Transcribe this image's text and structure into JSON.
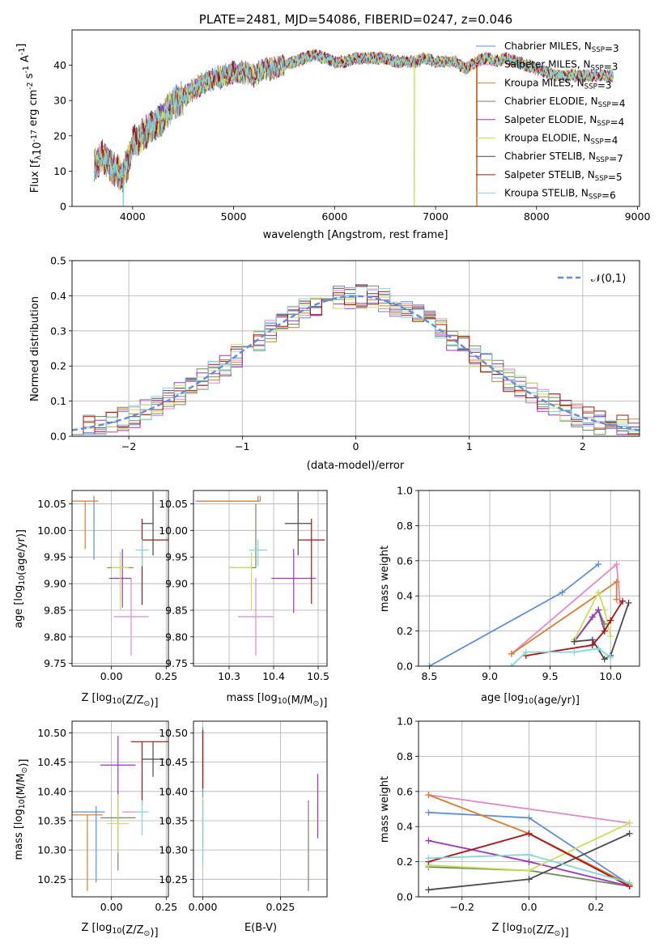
{
  "figure": {
    "title": "PLATE=2481, MJD=54086, FIBERID=0247, z=0.046"
  },
  "series_styles": [
    {
      "name": "Chabrier MILES, N$_{SSP}$=3",
      "color": "#5b8ee0"
    },
    {
      "name": "Salpeter MILES, N$_{SSP}$=3",
      "color": "#e589c6"
    },
    {
      "name": "Kroupa MILES, N$_{SSP}$=3",
      "color": "#e07b29"
    },
    {
      "name": "Chabrier ELODIE, N$_{SSP}$=4",
      "color": "#6a8f5a"
    },
    {
      "name": "Salpeter ELODIE, N$_{SSP}$=4",
      "color": "#a034c0"
    },
    {
      "name": "Kroupa ELODIE, N$_{SSP}$=4",
      "color": "#c9e05a"
    },
    {
      "name": "Chabrier STELIB, N$_{SSP}$=7",
      "color": "#4a4a4a"
    },
    {
      "name": "Salpeter STELIB, N$_{SSP}$=5",
      "color": "#b01010"
    },
    {
      "name": "Kroupa STELIB, N$_{SSP}$=6",
      "color": "#7fd8dc"
    }
  ],
  "chart_data": [
    {
      "id": "spectrum",
      "type": "line",
      "title": "PLATE=2481, MJD=54086, FIBERID=0247, z=0.046",
      "xlabel": "wavelength [Angstrom, rest frame]",
      "ylabel": "Flux [f$_\\lambda$10$^{-17}$ erg cm$^{-2}$ s$^{-1}$ A$^{-1}$]",
      "xlim": [
        3400,
        9020
      ],
      "ylim": [
        0,
        50
      ],
      "xticks": [
        4000,
        5000,
        6000,
        7000,
        8000,
        9000
      ],
      "yticks": [
        0,
        10,
        20,
        30,
        40
      ],
      "legend_position": "top-right",
      "legend_entries": [
        "Chabrier MILES, N$_{SSP}$=3",
        "Salpeter MILES, N$_{SSP}$=3",
        "Kroupa MILES, N$_{SSP}$=3",
        "Chabrier ELODIE, N$_{SSP}$=4",
        "Salpeter ELODIE, N$_{SSP}$=4",
        "Kroupa ELODIE, N$_{SSP}$=4",
        "Chabrier STELIB, N$_{SSP}$=7",
        "Salpeter STELIB, N$_{SSP}$=5",
        "Kroupa STELIB, N$_{SSP}$=6"
      ],
      "continuum": [
        [
          3620,
          12
        ],
        [
          3700,
          14
        ],
        [
          3800,
          11
        ],
        [
          3900,
          9
        ],
        [
          3950,
          12
        ],
        [
          4000,
          18
        ],
        [
          4100,
          20
        ],
        [
          4200,
          23
        ],
        [
          4300,
          25
        ],
        [
          4400,
          29
        ],
        [
          4500,
          31
        ],
        [
          4600,
          33
        ],
        [
          4700,
          35
        ],
        [
          4800,
          36
        ],
        [
          4900,
          37
        ],
        [
          5000,
          38
        ],
        [
          5100,
          38
        ],
        [
          5200,
          37
        ],
        [
          5300,
          39
        ],
        [
          5400,
          39
        ],
        [
          5500,
          40
        ],
        [
          5600,
          41
        ],
        [
          5700,
          42
        ],
        [
          5800,
          43
        ],
        [
          5900,
          42
        ],
        [
          6000,
          41
        ],
        [
          6100,
          41
        ],
        [
          6200,
          42
        ],
        [
          6300,
          42
        ],
        [
          6400,
          42
        ],
        [
          6500,
          42
        ],
        [
          6600,
          41
        ],
        [
          6700,
          41
        ],
        [
          6800,
          41
        ],
        [
          6900,
          42
        ],
        [
          7000,
          41
        ],
        [
          7100,
          41
        ],
        [
          7200,
          41
        ],
        [
          7300,
          39
        ],
        [
          7400,
          41
        ],
        [
          7500,
          42
        ],
        [
          7600,
          41
        ],
        [
          7700,
          42
        ],
        [
          7800,
          41
        ],
        [
          7900,
          40
        ],
        [
          8000,
          39
        ],
        [
          8100,
          38
        ],
        [
          8200,
          37
        ],
        [
          8300,
          37
        ],
        [
          8400,
          37
        ],
        [
          8500,
          37
        ],
        [
          8600,
          37
        ],
        [
          8700,
          37
        ],
        [
          8760,
          37
        ]
      ],
      "dropouts": [
        3910,
        6790,
        7410
      ]
    },
    {
      "id": "residuals",
      "type": "histogram",
      "xlabel": "(data-model)/error",
      "ylabel": "Normed distribution",
      "xlim": [
        -2.5,
        2.5
      ],
      "ylim": [
        0,
        0.5
      ],
      "xticks": [
        -2,
        -1,
        0,
        1,
        2
      ],
      "yticks": [
        0.0,
        0.1,
        0.2,
        0.3,
        0.4,
        0.5
      ],
      "xticklabels": [
        "−2",
        "−1",
        "0",
        "1",
        "2"
      ],
      "grid": true,
      "legend_position": "top-right",
      "reference_label": "$\\mathcal{N}(0,1)$",
      "bin_width": 0.1,
      "bin_start": -2.5
    },
    {
      "id": "age_vs_Z",
      "type": "scatter",
      "xlabel": "Z [log$_{10}$(Z/Z$_\\odot$)]",
      "ylabel": "age  [log$_{10}$(age/yr)]",
      "xlim": [
        -0.18,
        0.26
      ],
      "ylim": [
        9.745,
        10.075
      ],
      "xticks": [
        0.0,
        0.25
      ],
      "yticks": [
        9.75,
        9.8,
        9.85,
        9.9,
        9.95,
        10.0,
        10.05
      ],
      "grid": true,
      "points": [
        {
          "x": -0.08,
          "y": 10.005,
          "xerr": [
            0.0,
            0.0
          ],
          "yerr": [
            0.06,
            0.06
          ]
        },
        {
          "x": 0.09,
          "y": 9.838,
          "xerr": [
            0.08,
            0.08
          ],
          "yerr": [
            0.073,
            0.073
          ]
        },
        {
          "x": -0.12,
          "y": 10.055,
          "xerr": [
            0.06,
            0.06
          ],
          "yerr": [
            0.09,
            0.0
          ]
        },
        {
          "x": 0.04,
          "y": 9.93,
          "xerr": [
            0.06,
            0.06
          ],
          "yerr": [
            0.0,
            0.0
          ]
        },
        {
          "x": 0.05,
          "y": 9.91,
          "xerr": [
            0.06,
            0.04
          ],
          "yerr": [
            0.055,
            0.055
          ]
        },
        {
          "x": 0.04,
          "y": 9.93,
          "xerr": [
            0.04,
            0.04
          ],
          "yerr": [
            0.08,
            0.03
          ]
        },
        {
          "x": 0.19,
          "y": 10.013,
          "xerr": [
            0.05,
            0.0
          ],
          "yerr": [
            0.06,
            0.06
          ]
        },
        {
          "x": 0.14,
          "y": 9.982,
          "xerr": [
            0.0,
            0.12
          ],
          "yerr": [
            0.122,
            0.04
          ]
        },
        {
          "x": 0.14,
          "y": 9.963,
          "xerr": [
            0.03,
            0.03
          ],
          "yerr": [
            0.03,
            0.02
          ]
        }
      ]
    },
    {
      "id": "age_vs_mass",
      "type": "scatter",
      "xlabel": "mass [log$_{10}$(M/M$_\\odot$)]",
      "ylabel": "",
      "xlim": [
        10.22,
        10.52
      ],
      "ylim": [
        9.745,
        10.075
      ],
      "xticks": [
        10.3,
        10.4,
        10.5
      ],
      "yticks": [
        9.75,
        9.8,
        9.85,
        9.9,
        9.95,
        10.0,
        10.05
      ],
      "grid": true,
      "points": [
        {
          "x": 10.365,
          "y": 10.055,
          "xerr": [
            0.14,
            0.0
          ],
          "yerr": [
            0.0,
            0.01
          ]
        },
        {
          "x": 10.36,
          "y": 9.838,
          "xerr": [
            0.04,
            0.04
          ],
          "yerr": [
            0.073,
            0.073
          ]
        },
        {
          "x": 10.37,
          "y": 10.055,
          "xerr": [
            0.14,
            0.0
          ],
          "yerr": [
            0.0,
            0.01
          ]
        },
        {
          "x": 10.36,
          "y": 9.93,
          "xerr": [
            0.06,
            0.0
          ],
          "yerr": [
            0.0,
            0.12
          ]
        },
        {
          "x": 10.445,
          "y": 9.91,
          "xerr": [
            0.05,
            0.05
          ],
          "yerr": [
            0.065,
            0.055
          ]
        },
        {
          "x": 10.35,
          "y": 9.93,
          "xerr": [
            0.05,
            0.0
          ],
          "yerr": [
            0.08,
            0.03
          ]
        },
        {
          "x": 10.455,
          "y": 10.013,
          "xerr": [
            0.03,
            0.03
          ],
          "yerr": [
            0.06,
            0.06
          ]
        },
        {
          "x": 10.485,
          "y": 9.982,
          "xerr": [
            0.03,
            0.03
          ],
          "yerr": [
            0.12,
            0.04
          ]
        },
        {
          "x": 10.365,
          "y": 9.963,
          "xerr": [
            0.02,
            0.02
          ],
          "yerr": [
            0.03,
            0.02
          ]
        }
      ]
    },
    {
      "id": "weight_vs_age",
      "type": "line",
      "xlabel": "age  [log$_{10}$(age/yr)]",
      "ylabel": "mass weight",
      "xlim": [
        8.41,
        10.24
      ],
      "ylim": [
        0,
        1.0
      ],
      "xticks": [
        8.5,
        9.0,
        9.5,
        10.0
      ],
      "yticks": [
        0.0,
        0.2,
        0.4,
        0.6,
        0.8,
        1.0
      ],
      "grid": true,
      "series": [
        {
          "x": [
            8.5,
            9.6,
            9.9
          ],
          "y": [
            0.0,
            0.42,
            0.58
          ]
        },
        {
          "x": [
            9.18,
            10.05,
            10.08
          ],
          "y": [
            0.07,
            0.58,
            0.36
          ]
        },
        {
          "x": [
            9.18,
            10.05,
            10.05
          ],
          "y": [
            0.07,
            0.48,
            0.38
          ]
        },
        {
          "x": [
            9.7,
            9.9,
            9.95
          ],
          "y": [
            0.14,
            0.32,
            0.24
          ]
        },
        {
          "x": [
            9.7,
            9.85,
            9.9,
            9.95
          ],
          "y": [
            0.14,
            0.28,
            0.32,
            0.2
          ]
        },
        {
          "x": [
            9.7,
            9.9,
            9.95,
            10.0
          ],
          "y": [
            0.15,
            0.42,
            0.32,
            0.17
          ]
        },
        {
          "x": [
            9.7,
            9.85,
            9.95,
            10.0,
            10.15
          ],
          "y": [
            0.14,
            0.15,
            0.04,
            0.06,
            0.36
          ]
        },
        {
          "x": [
            9.3,
            9.85,
            9.95,
            10.0,
            10.1
          ],
          "y": [
            0.06,
            0.12,
            0.2,
            0.26,
            0.37
          ]
        },
        {
          "x": [
            9.18,
            9.3,
            9.7,
            9.9,
            10.0
          ],
          "y": [
            0.0,
            0.08,
            0.08,
            0.1,
            0.05
          ]
        }
      ]
    },
    {
      "id": "mass_vs_Z",
      "type": "scatter",
      "xlabel": "Z [log$_{10}$(Z/Z$_\\odot$)]",
      "ylabel": "mass [log$_{10}$(M/M$_\\odot$)]",
      "xlim": [
        -0.18,
        0.26
      ],
      "ylim": [
        10.22,
        10.52
      ],
      "xticks": [
        0.0,
        0.25
      ],
      "yticks": [
        10.25,
        10.3,
        10.35,
        10.4,
        10.45,
        10.5
      ],
      "grid": true,
      "points": [
        {
          "x": -0.07,
          "y": 10.365,
          "xerr": [
            0.11,
            0.04
          ],
          "yerr": [
            0.12,
            0.01
          ]
        },
        {
          "x": 0.09,
          "y": 10.365,
          "xerr": [
            0.04,
            0.04
          ],
          "yerr": [
            0.0,
            0.0
          ]
        },
        {
          "x": -0.11,
          "y": 10.36,
          "xerr": [
            0.07,
            0.07
          ],
          "yerr": [
            0.13,
            0.0
          ]
        },
        {
          "x": 0.03,
          "y": 10.355,
          "xerr": [
            0.08,
            0.08
          ],
          "yerr": [
            0.09,
            0.04
          ]
        },
        {
          "x": 0.03,
          "y": 10.445,
          "xerr": [
            0.08,
            0.08
          ],
          "yerr": [
            0.05,
            0.05
          ]
        },
        {
          "x": 0.03,
          "y": 10.345,
          "xerr": [
            0.05,
            0.05
          ],
          "yerr": [
            0.05,
            0.05
          ]
        },
        {
          "x": 0.19,
          "y": 10.455,
          "xerr": [
            0.05,
            0.05
          ],
          "yerr": [
            0.03,
            0.03
          ]
        },
        {
          "x": 0.14,
          "y": 10.485,
          "xerr": [
            0.05,
            0.12
          ],
          "yerr": [
            0.11,
            0.0
          ]
        },
        {
          "x": 0.14,
          "y": 10.365,
          "xerr": [
            0.03,
            0.03
          ],
          "yerr": [
            0.04,
            0.02
          ]
        }
      ]
    },
    {
      "id": "mass_vs_EBV",
      "type": "scatter",
      "xlabel": "E(B-V)",
      "ylabel": "",
      "xlim": [
        -0.003,
        0.04
      ],
      "ylim": [
        10.22,
        10.52
      ],
      "xticks": [
        0.0,
        0.025
      ],
      "xticklabels": [
        "0.000",
        "0.025"
      ],
      "yticks": [
        10.25,
        10.3,
        10.35,
        10.4,
        10.45,
        10.5
      ],
      "grid": true,
      "points": [
        {
          "x": 0.0,
          "y": 10.45,
          "xerr": [
            0,
            0
          ],
          "yerr": [
            0.06,
            0.06
          ]
        },
        {
          "x": 0.0,
          "y": 10.33,
          "xerr": [
            0,
            0
          ],
          "yerr": [
            0.06,
            0.06
          ]
        },
        {
          "x": 0.0,
          "y": 10.355,
          "xerr": [
            0,
            0
          ],
          "yerr": [
            0.05,
            0.03
          ]
        },
        {
          "x": 0.034,
          "y": 10.305,
          "xerr": [
            0,
            0
          ],
          "yerr": [
            0.075,
            0.08
          ]
        },
        {
          "x": 0.037,
          "y": 10.37,
          "xerr": [
            0,
            0
          ],
          "yerr": [
            0.05,
            0.06
          ]
        },
        {
          "x": 0.0,
          "y": 10.34,
          "xerr": [
            0,
            0
          ],
          "yerr": [
            0.07,
            0.05
          ]
        },
        {
          "x": 0.0,
          "y": 10.455,
          "xerr": [
            0,
            0
          ],
          "yerr": [
            0.05,
            0.05
          ]
        },
        {
          "x": 0.0,
          "y": 10.485,
          "xerr": [
            0,
            0
          ],
          "yerr": [
            0.08,
            0.02
          ]
        },
        {
          "x": 0.0,
          "y": 10.335,
          "xerr": [
            0,
            0
          ],
          "yerr": [
            0.06,
            0.05
          ]
        }
      ]
    },
    {
      "id": "weight_vs_Z",
      "type": "line",
      "xlabel": "Z [log$_{10}$(Z/Z$_\\odot$)]",
      "ylabel": "mass weight",
      "xlim": [
        -0.33,
        0.33
      ],
      "ylim": [
        0,
        1.0
      ],
      "xticks": [
        -0.2,
        0.0,
        0.2
      ],
      "xticklabels": [
        "−0.2",
        "0.0",
        "0.2"
      ],
      "yticks": [
        0.0,
        0.2,
        0.4,
        0.6,
        0.8,
        1.0
      ],
      "grid": true,
      "series": [
        {
          "x": [
            -0.3,
            0.0,
            0.3
          ],
          "y": [
            0.48,
            0.45,
            0.07
          ]
        },
        {
          "x": [
            -0.3,
            0.3
          ],
          "y": [
            0.58,
            0.42
          ]
        },
        {
          "x": [
            -0.3,
            0.0,
            0.3
          ],
          "y": [
            0.58,
            0.36,
            0.07
          ]
        },
        {
          "x": [
            -0.3,
            0.0,
            0.3
          ],
          "y": [
            0.17,
            0.15,
            0.06
          ]
        },
        {
          "x": [
            -0.3,
            0.0,
            0.3
          ],
          "y": [
            0.32,
            0.2,
            0.06
          ]
        },
        {
          "x": [
            -0.3,
            0.0,
            0.3
          ],
          "y": [
            0.18,
            0.15,
            0.42
          ]
        },
        {
          "x": [
            -0.3,
            0.0,
            0.3
          ],
          "y": [
            0.04,
            0.1,
            0.36
          ]
        },
        {
          "x": [
            -0.3,
            0.0,
            0.3
          ],
          "y": [
            0.2,
            0.36,
            0.06
          ]
        },
        {
          "x": [
            -0.3,
            0.0,
            0.3
          ],
          "y": [
            0.22,
            0.24,
            0.08
          ]
        }
      ]
    }
  ]
}
